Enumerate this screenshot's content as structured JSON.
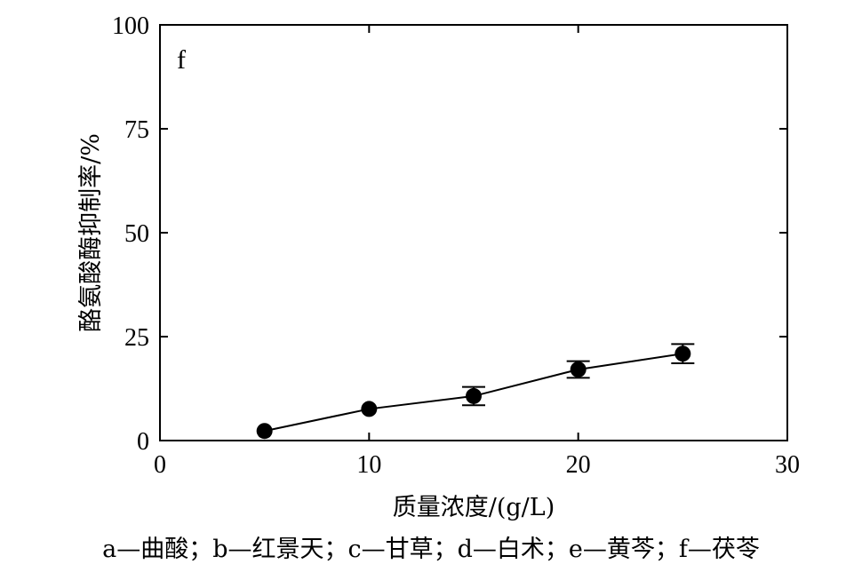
{
  "chart_data": {
    "type": "scatter",
    "panel_label": "f",
    "xlabel": "质量浓度/(g/L)",
    "ylabel": "酪氨酸酶抑制率/%",
    "xlim": [
      0,
      30
    ],
    "ylim": [
      0,
      100
    ],
    "x_ticks": [
      0,
      10,
      20,
      30
    ],
    "y_ticks": [
      0,
      25,
      50,
      75,
      100
    ],
    "x_tick_labels": [
      "0",
      "10",
      "20",
      "30"
    ],
    "y_tick_labels": [
      "0",
      "25",
      "50",
      "75",
      "100"
    ],
    "grid": false,
    "series": [
      {
        "x": [
          5,
          10,
          15,
          20,
          25
        ],
        "y": [
          2.3,
          7.6,
          10.7,
          17.1,
          20.9
        ],
        "error": [
          0,
          0,
          2.2,
          2.0,
          2.3
        ],
        "marker": "filled-circle",
        "line": "solid",
        "color": "#000000"
      }
    ]
  },
  "caption": "a—曲酸；b—红景天；c—甘草；d—白术；e—黄芩；f—茯苓"
}
